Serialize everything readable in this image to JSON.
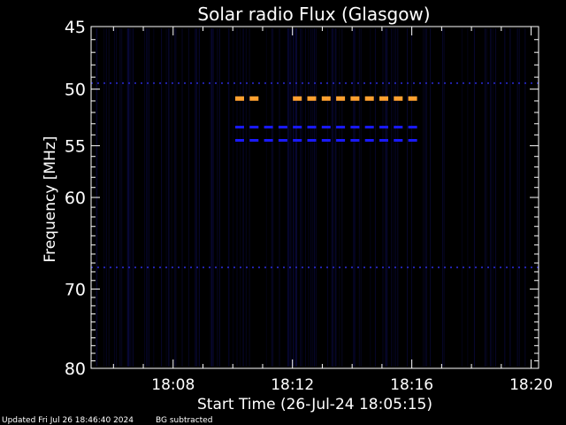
{
  "chart_data": {
    "type": "heatmap",
    "title": "Solar radio Flux (Glasgow)",
    "xlabel": "Start Time (26-Jul-24 18:05:15)",
    "ylabel": "Frequency [MHz]",
    "x_unit": "time of day (UTC)",
    "xlim": [
      "18:05:15",
      "18:20:15"
    ],
    "ylim": [
      45,
      80
    ],
    "y_scale": "log",
    "y_direction": "increasing downward",
    "x_ticks": [
      "18:08",
      "18:12",
      "18:16",
      "18:20"
    ],
    "y_ticks": [
      45,
      50,
      55,
      60,
      70,
      80
    ],
    "colormap": "black-blue-orange",
    "colors": {
      "background": "#000000",
      "axes": "#ffffff",
      "low": "#0a0a40",
      "mid": "#1a1aff",
      "high": "#ffa030"
    },
    "features": [
      {
        "kind": "dashed band",
        "start": "18:10:05",
        "end": "18:16:15",
        "freq_mhz": 50.8,
        "intensity": "high",
        "gap_between": [
          "18:10:55",
          "18:12:00"
        ]
      },
      {
        "kind": "dashed band",
        "start": "18:10:05",
        "end": "18:16:15",
        "freq_mhz": 53.3,
        "intensity": "medium"
      },
      {
        "kind": "dashed band",
        "start": "18:10:05",
        "end": "18:16:15",
        "freq_mhz": 54.5,
        "intensity": "medium"
      },
      {
        "kind": "dotted band",
        "start": "18:05:15",
        "end": "18:20:15",
        "freq_mhz": 49.5,
        "intensity": "low"
      },
      {
        "kind": "dotted band",
        "start": "18:05:15",
        "end": "18:20:15",
        "freq_mhz": 67.5,
        "intensity": "low"
      }
    ]
  },
  "footer": {
    "updated": "Updated Fri Jul 26 18:46:40 2024",
    "bg_note": "BG subtracted"
  }
}
